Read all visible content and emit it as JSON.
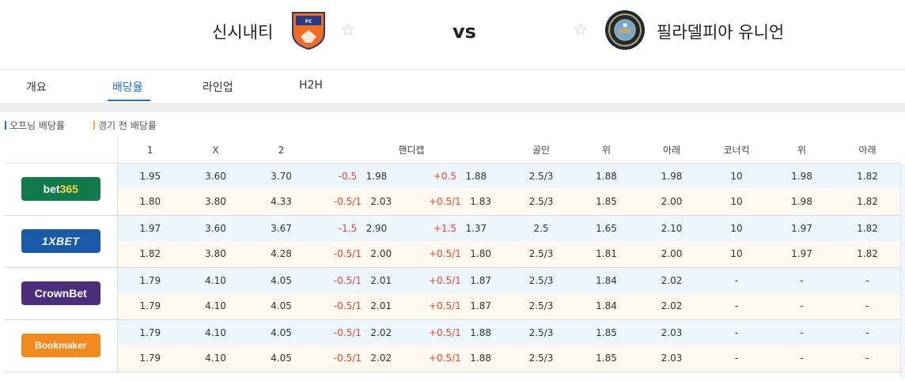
{
  "match": {
    "home": "신시내티",
    "vs": "vs",
    "away": "필라델피아 유니언"
  },
  "tabs": [
    {
      "label": "개요"
    },
    {
      "label": "배당율"
    },
    {
      "label": "라인업"
    },
    {
      "label": "H2H"
    }
  ],
  "legend": {
    "opening": "오프닝 배당률",
    "pre_match": "경기 전 배당률",
    "opening_color": "#1a73c9",
    "pre_match_color": "#f0a93c"
  },
  "headers": [
    "1",
    "X",
    "2",
    "핸디캡",
    "골인",
    "위",
    "아래",
    "코너킥",
    "위",
    "아래"
  ],
  "bookmakers": [
    {
      "name": "bet365",
      "rows": [
        {
          "h": "1.95",
          "d": "3.60",
          "a": "3.70",
          "hc1": "-0.5",
          "hco1": "1.98",
          "hc2": "+0.5",
          "hco2": "1.88",
          "goal": "2.5/3",
          "over": "1.88",
          "under": "1.98",
          "corner": "10",
          "cover": "1.98",
          "cunder": "1.82"
        },
        {
          "h": "1.80",
          "d": "3.80",
          "a": "4.33",
          "hc1": "-0.5/1",
          "hco1": "2.03",
          "hc2": "+0.5/1",
          "hco2": "1.83",
          "goal": "2.5/3",
          "over": "1.85",
          "under": "2.00",
          "corner": "10",
          "cover": "1.98",
          "cunder": "1.82"
        }
      ]
    },
    {
      "name": "1XBET",
      "rows": [
        {
          "h": "1.97",
          "d": "3.60",
          "a": "3.67",
          "hc1": "-1.5",
          "hco1": "2.90",
          "hc2": "+1.5",
          "hco2": "1.37",
          "goal": "2.5",
          "over": "1.65",
          "under": "2.10",
          "corner": "10",
          "cover": "1.97",
          "cunder": "1.82"
        },
        {
          "h": "1.82",
          "d": "3.80",
          "a": "4.28",
          "hc1": "-0.5/1",
          "hco1": "2.00",
          "hc2": "+0.5/1",
          "hco2": "1.80",
          "goal": "2.5/3",
          "over": "1.81",
          "under": "2.00",
          "corner": "10",
          "cover": "1.97",
          "cunder": "1.82"
        }
      ]
    },
    {
      "name": "CrownBet",
      "rows": [
        {
          "h": "1.79",
          "d": "4.10",
          "a": "4.05",
          "hc1": "-0.5/1",
          "hco1": "2.01",
          "hc2": "+0.5/1",
          "hco2": "1.87",
          "goal": "2.5/3",
          "over": "1.84",
          "under": "2.02",
          "corner": "-",
          "cover": "-",
          "cunder": "-"
        },
        {
          "h": "1.79",
          "d": "4.10",
          "a": "4.05",
          "hc1": "-0.5/1",
          "hco1": "2.01",
          "hc2": "+0.5/1",
          "hco2": "1.87",
          "goal": "2.5/3",
          "over": "1.84",
          "under": "2.02",
          "corner": "-",
          "cover": "-",
          "cunder": "-"
        }
      ]
    },
    {
      "name": "Bookmaker",
      "rows": [
        {
          "h": "1.79",
          "d": "4.10",
          "a": "4.05",
          "hc1": "-0.5/1",
          "hco1": "2.02",
          "hc2": "+0.5/1",
          "hco2": "1.88",
          "goal": "2.5/3",
          "over": "1.85",
          "under": "2.03",
          "corner": "-",
          "cover": "-",
          "cunder": "-"
        },
        {
          "h": "1.79",
          "d": "4.10",
          "a": "4.05",
          "hc1": "-0.5/1",
          "hco1": "2.02",
          "hc2": "+0.5/1",
          "hco2": "1.88",
          "goal": "2.5/3",
          "over": "1.85",
          "under": "2.03",
          "corner": "-",
          "cover": "-",
          "cunder": "-"
        }
      ]
    }
  ],
  "colors": {
    "accent": "#1a73c9",
    "highlight_red": "#e8452c",
    "opening_row_bg": "#eef6fd",
    "pre_row_bg": "#fff8ef"
  }
}
